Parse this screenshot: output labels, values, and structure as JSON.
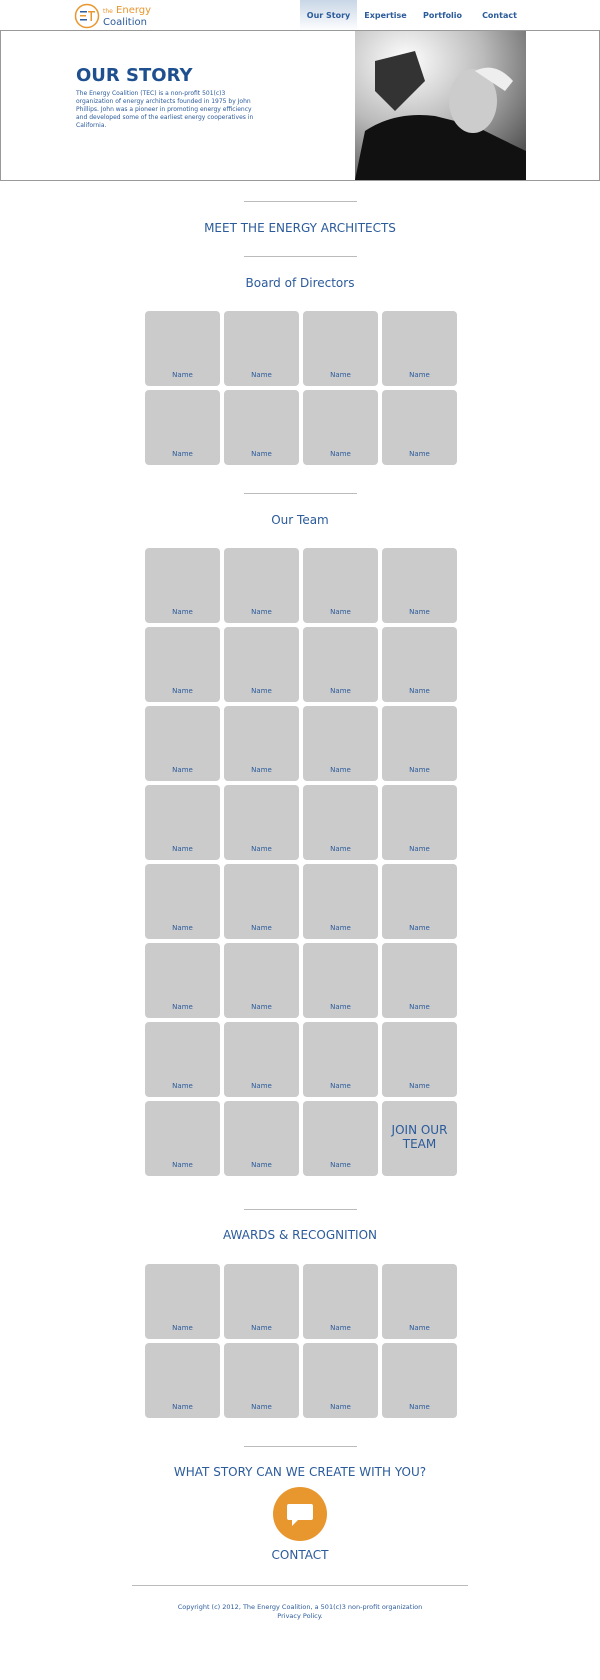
{
  "logo": {
    "small": "the",
    "line1": "Energy",
    "line2": "Coalition"
  },
  "nav": [
    "Our Story",
    "Expertise",
    "Portfolio",
    "Contact"
  ],
  "hero": {
    "title": "OUR STORY",
    "text": "The Energy Coalition (TEC) is a non-profit 501(c)3 organization of energy architects founded in 1975 by John Phillips.  John was a pioneer in promoting energy efficiency and developed some of the earliest energy cooperatives in California."
  },
  "section_title": "MEET THE ENERGY ARCHITECTS",
  "board": {
    "title": "Board of Directors",
    "names": [
      "Name",
      "Name",
      "Name",
      "Name",
      "Name",
      "Name",
      "Name",
      "Name"
    ]
  },
  "team": {
    "title": "Our Team",
    "names": [
      "Name",
      "Name",
      "Name",
      "Name",
      "Name",
      "Name",
      "Name",
      "Name",
      "Name",
      "Name",
      "Name",
      "Name",
      "Name",
      "Name",
      "Name",
      "Name",
      "Name",
      "Name",
      "Name",
      "Name",
      "Name",
      "Name",
      "Name",
      "Name",
      "Name",
      "Name",
      "Name",
      "Name",
      "Name",
      "Name",
      "Name"
    ],
    "join": "JOIN OUR TEAM"
  },
  "awards": {
    "title": "AWARDS & RECOGNITION",
    "names": [
      "Name",
      "Name",
      "Name",
      "Name",
      "Name",
      "Name",
      "Name",
      "Name"
    ]
  },
  "cta": {
    "title": "WHAT STORY CAN WE CREATE WITH YOU?",
    "button": "CONTACT"
  },
  "footer": {
    "copyright": "Copyright (c) 2012, The Energy Coalition, a 501(c)3 non-profit organization",
    "privacy": "Privacy Policy."
  }
}
